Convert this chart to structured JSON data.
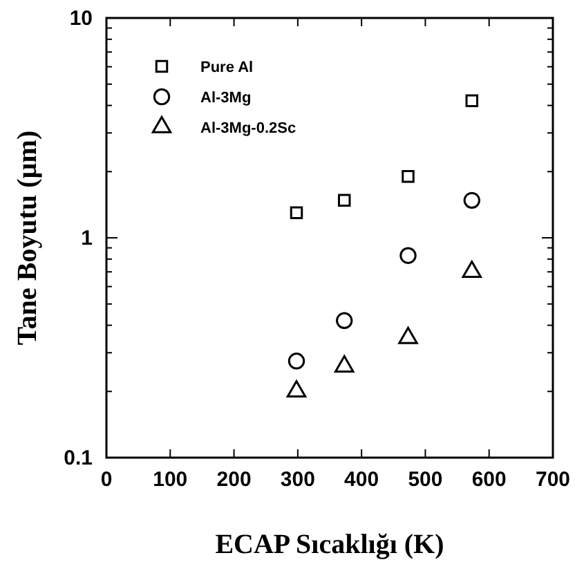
{
  "chart_data": {
    "type": "scatter",
    "xlabel": "ECAP Sıcaklığı  (K)",
    "ylabel": "Tane Boyutu  (µm)",
    "log": "y",
    "xlim": [
      0,
      700
    ],
    "xticks": [
      0,
      100,
      200,
      300,
      400,
      500,
      600,
      700
    ],
    "ylim": [
      0.1,
      10
    ],
    "yticks": [
      0.1,
      1,
      10
    ],
    "legend": "top left",
    "x": [
      298,
      373,
      473,
      573
    ],
    "series": [
      {
        "name": "Pure Al",
        "color": "#000000",
        "marker": "square",
        "values": [
          1.3,
          1.48,
          1.9,
          4.2
        ]
      },
      {
        "name": "Al-3Mg",
        "color": "#000000",
        "marker": "circle",
        "values": [
          0.275,
          0.42,
          0.83,
          1.48
        ]
      },
      {
        "name": "Al-3Mg-0.2Sc",
        "color": "#000000",
        "marker": "triangle",
        "values": [
          0.2,
          0.26,
          0.35,
          0.7
        ]
      }
    ]
  }
}
